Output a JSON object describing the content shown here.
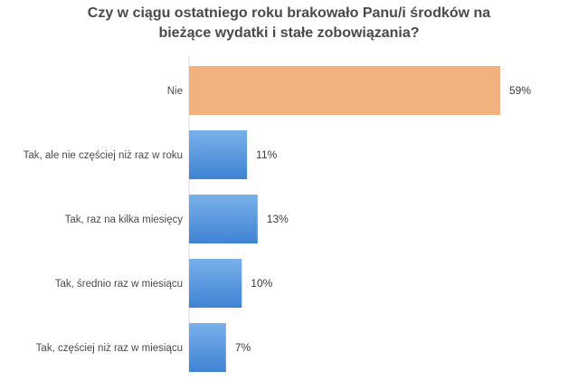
{
  "chart_data": {
    "type": "bar",
    "orientation": "horizontal",
    "title_lines": [
      "Czy w ciągu ostatniego roku brakowało Panu/i środków na",
      "bieżące wydatki i stałe zobowiązania?"
    ],
    "categories": [
      "Nie",
      "Tak, ale nie częściej niż raz w roku",
      "Tak, raz na kilka miesięcy",
      "Tak, średnio raz w miesiącu",
      "Tak, częściej niż raz w miesiącu"
    ],
    "values": [
      59,
      11,
      13,
      10,
      7
    ],
    "value_labels": [
      "59%",
      "11%",
      "13%",
      "10%",
      "7%"
    ],
    "unit": "%",
    "xlim": [
      0,
      59
    ],
    "grid": false,
    "legend": "none",
    "colors": {
      "highlight": "#f2b27f",
      "bar_top": "#79b1ea",
      "bar_bottom": "#3f83d4",
      "axis": "#d9d9d9",
      "title": "#4a4a4a"
    },
    "highlight_index": 0
  }
}
